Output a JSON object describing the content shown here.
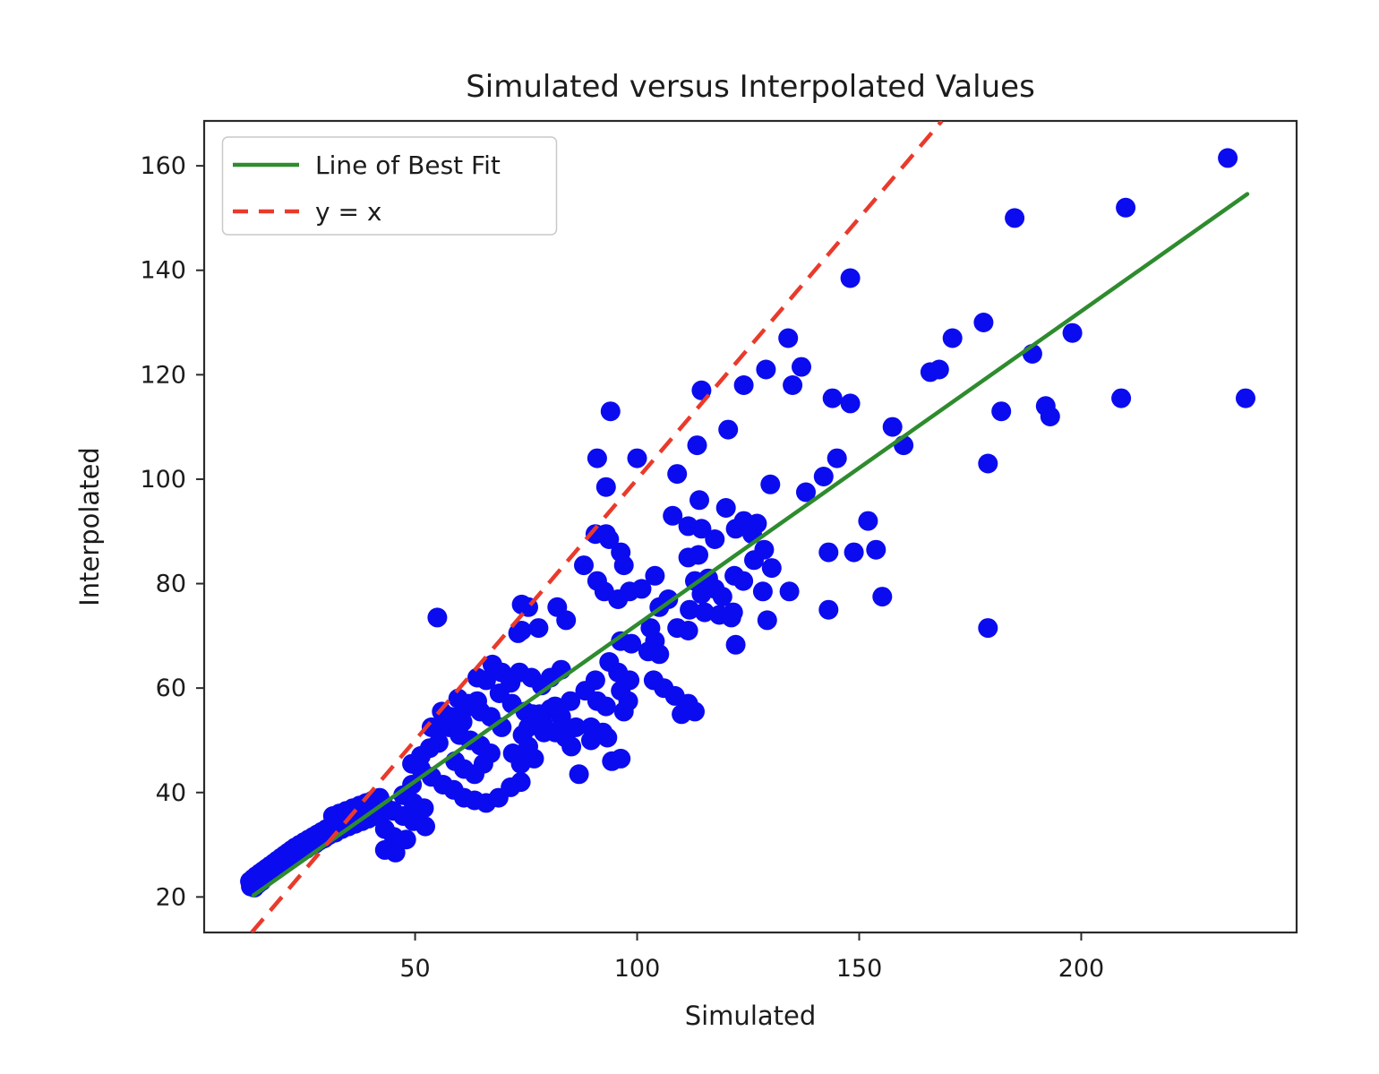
{
  "figure": {
    "title": "Simulated versus Interpolated Values",
    "xlabel": "Simulated",
    "ylabel": "Interpolated"
  },
  "chart_data": {
    "type": "scatter",
    "title": "Simulated versus Interpolated Values",
    "xlabel": "Simulated",
    "ylabel": "Interpolated",
    "xlim": [
      2.5,
      248.5
    ],
    "ylim": [
      13.2,
      168.6
    ],
    "x_ticks": [
      50,
      100,
      150,
      200
    ],
    "y_ticks": [
      20,
      40,
      60,
      80,
      100,
      120,
      140,
      160
    ],
    "grid": false,
    "colors": {
      "marker": "#0b0bf0",
      "best_fit": "#2e8b2e",
      "identity": "#e93a2b",
      "spine": "#2a2a2a",
      "legend_border": "#c9c9c9"
    },
    "legend": {
      "position": "upper left",
      "entries": [
        {
          "label": "Line of Best Fit",
          "color": "#2e8b2e",
          "style": "solid"
        },
        {
          "label": "y = x",
          "color": "#e93a2b",
          "style": "dashed"
        }
      ]
    },
    "best_fit_line": {
      "x_start": 13.6,
      "y_start": 20.3,
      "x_end": 237.4,
      "y_end": 154.6
    },
    "identity_line": {
      "slope": 1,
      "intercept": 0
    },
    "points": [
      [
        12.8,
        23
      ],
      [
        13,
        22
      ],
      [
        13.5,
        23.5
      ],
      [
        13.8,
        21.8
      ],
      [
        14.2,
        24
      ],
      [
        14.6,
        22.5
      ],
      [
        15,
        24.5
      ],
      [
        15.4,
        23
      ],
      [
        15.8,
        25
      ],
      [
        16.2,
        23.8
      ],
      [
        16.6,
        25.5
      ],
      [
        17,
        24.3
      ],
      [
        17.4,
        26
      ],
      [
        17.8,
        24.8
      ],
      [
        18.2,
        26.5
      ],
      [
        18.6,
        25.2
      ],
      [
        19,
        27
      ],
      [
        19.4,
        25.8
      ],
      [
        19.8,
        27.5
      ],
      [
        20.2,
        26.3
      ],
      [
        20.6,
        28
      ],
      [
        21,
        26.8
      ],
      [
        21.4,
        28.5
      ],
      [
        21.8,
        27.2
      ],
      [
        22.2,
        29
      ],
      [
        22.6,
        27.8
      ],
      [
        23,
        29.5
      ],
      [
        23.5,
        28.2
      ],
      [
        24,
        30
      ],
      [
        24.5,
        28.8
      ],
      [
        25,
        30.5
      ],
      [
        25.5,
        29.2
      ],
      [
        26,
        31
      ],
      [
        26.5,
        29.8
      ],
      [
        27,
        31.5
      ],
      [
        27.5,
        30.2
      ],
      [
        28,
        32
      ],
      [
        28.5,
        30.8
      ],
      [
        29,
        32.5
      ],
      [
        29.5,
        31.2
      ],
      [
        30,
        33
      ],
      [
        30.5,
        31.8
      ],
      [
        31,
        33.5
      ],
      [
        31.5,
        35.5
      ],
      [
        32,
        32.3
      ],
      [
        32.5,
        34
      ],
      [
        33,
        36
      ],
      [
        33.5,
        33
      ],
      [
        34,
        34.5
      ],
      [
        34.5,
        36.5
      ],
      [
        35,
        33.5
      ],
      [
        35.5,
        35
      ],
      [
        36,
        37
      ],
      [
        36.5,
        34
      ],
      [
        37,
        35.5
      ],
      [
        37.5,
        37.5
      ],
      [
        38,
        34.5
      ],
      [
        38.5,
        36
      ],
      [
        39,
        38
      ],
      [
        39.5,
        35
      ],
      [
        40,
        36.5
      ],
      [
        40.5,
        38.5
      ],
      [
        41,
        35.5
      ],
      [
        41.5,
        37
      ],
      [
        42,
        39
      ],
      [
        42.5,
        36
      ],
      [
        43,
        37.5
      ],
      [
        43.2,
        33
      ],
      [
        45.2,
        31.5
      ],
      [
        48,
        31
      ],
      [
        43.2,
        29
      ],
      [
        45.6,
        28.5
      ],
      [
        45,
        36.5
      ],
      [
        47.3,
        35.5
      ],
      [
        49.6,
        34.5
      ],
      [
        52.3,
        33.5
      ],
      [
        49.3,
        41.5
      ],
      [
        47.3,
        39.5
      ],
      [
        49.6,
        38
      ],
      [
        52,
        37
      ],
      [
        55.3,
        49.5
      ],
      [
        53.3,
        48.5
      ],
      [
        51.3,
        47
      ],
      [
        49.3,
        45.5
      ],
      [
        51.3,
        44.5
      ],
      [
        53.7,
        43
      ],
      [
        56.3,
        41.5
      ],
      [
        58.7,
        40.5
      ],
      [
        61,
        39
      ],
      [
        63.4,
        38.5
      ],
      [
        66,
        38
      ],
      [
        68.8,
        39
      ],
      [
        71.5,
        41
      ],
      [
        73.8,
        42
      ],
      [
        59.7,
        54.5
      ],
      [
        57.7,
        52.5
      ],
      [
        60,
        51
      ],
      [
        62.4,
        50
      ],
      [
        64.7,
        49
      ],
      [
        67,
        47.5
      ],
      [
        65.4,
        45.5
      ],
      [
        63.4,
        43.5
      ],
      [
        61,
        44.5
      ],
      [
        59,
        46
      ],
      [
        62.4,
        56.5
      ],
      [
        64.7,
        55.5
      ],
      [
        67,
        54.5
      ],
      [
        69.5,
        52.5
      ],
      [
        72,
        47.5
      ],
      [
        73.8,
        45.5
      ],
      [
        76.8,
        46.5
      ],
      [
        74.2,
        51
      ],
      [
        75.5,
        48.8
      ],
      [
        76.5,
        55
      ],
      [
        78.9,
        53
      ],
      [
        81.6,
        51.5
      ],
      [
        83.9,
        50.5
      ],
      [
        80.5,
        56
      ],
      [
        82.9,
        54.5
      ],
      [
        85.2,
        48.8
      ],
      [
        86.9,
        43.5
      ],
      [
        93.3,
        50.5
      ],
      [
        94.3,
        46
      ],
      [
        96.3,
        46.5
      ],
      [
        97,
        55.5
      ],
      [
        55,
        73.5
      ],
      [
        55.3,
        52
      ],
      [
        56,
        55.5
      ],
      [
        53.7,
        52.5
      ],
      [
        58,
        54.5
      ],
      [
        60.7,
        53.5
      ],
      [
        59.7,
        58
      ],
      [
        62,
        57
      ],
      [
        64,
        57.5
      ],
      [
        64,
        62
      ],
      [
        66,
        61.5
      ],
      [
        67.4,
        64.5
      ],
      [
        69.5,
        63
      ],
      [
        73.2,
        70.5
      ],
      [
        74,
        71
      ],
      [
        74,
        76
      ],
      [
        69,
        59
      ],
      [
        71.8,
        57
      ],
      [
        74.8,
        55.5
      ],
      [
        78,
        55
      ],
      [
        81.5,
        56.5
      ],
      [
        85,
        57.5
      ],
      [
        71.5,
        61
      ],
      [
        73.5,
        63
      ],
      [
        76.2,
        62
      ],
      [
        78.5,
        60.5
      ],
      [
        80.5,
        62
      ],
      [
        82.9,
        63.5
      ],
      [
        75.5,
        52.5
      ],
      [
        79,
        51.5
      ],
      [
        82.9,
        52
      ],
      [
        86.2,
        52.5
      ],
      [
        89.6,
        52.5
      ],
      [
        92.3,
        51.5
      ],
      [
        89.6,
        50
      ],
      [
        88.3,
        59.5
      ],
      [
        90.6,
        61.5
      ],
      [
        91,
        57.5
      ],
      [
        93,
        56.5
      ],
      [
        96.3,
        59.5
      ],
      [
        98,
        57.5
      ],
      [
        98.3,
        61.5
      ],
      [
        95.7,
        63
      ],
      [
        93.7,
        65
      ],
      [
        96.3,
        69
      ],
      [
        98.7,
        68.5
      ],
      [
        102.5,
        67
      ],
      [
        104,
        69
      ],
      [
        103,
        71.5
      ],
      [
        105,
        66.5
      ],
      [
        103.7,
        61.5
      ],
      [
        106,
        60
      ],
      [
        108.5,
        58.5
      ],
      [
        110,
        55
      ],
      [
        111.5,
        57
      ],
      [
        113,
        55.5
      ],
      [
        105,
        75.5
      ],
      [
        107,
        77
      ],
      [
        109,
        71.5
      ],
      [
        111.5,
        71
      ],
      [
        111.8,
        75
      ],
      [
        115.2,
        74.5
      ],
      [
        118.5,
        74
      ],
      [
        121.2,
        73.5
      ],
      [
        113,
        80.5
      ],
      [
        116,
        81
      ],
      [
        114.5,
        78
      ],
      [
        117.5,
        79
      ],
      [
        111.5,
        85
      ],
      [
        113.8,
        85.5
      ],
      [
        117.5,
        88.5
      ],
      [
        90.6,
        89.5
      ],
      [
        93.7,
        88.5
      ],
      [
        96.3,
        86
      ],
      [
        97,
        83.5
      ],
      [
        91,
        80.5
      ],
      [
        92.6,
        78.5
      ],
      [
        95.7,
        77
      ],
      [
        98.3,
        78.5
      ],
      [
        101,
        79
      ],
      [
        104,
        81.5
      ],
      [
        88,
        83.5
      ],
      [
        75.5,
        75.5
      ],
      [
        82,
        75.5
      ],
      [
        84,
        73
      ],
      [
        77.8,
        71.5
      ],
      [
        122.2,
        68.3
      ],
      [
        119.2,
        77.5
      ],
      [
        121.6,
        74.5
      ],
      [
        129.3,
        73
      ],
      [
        128.3,
        78.5
      ],
      [
        134.3,
        78.5
      ],
      [
        121.9,
        81.5
      ],
      [
        123.9,
        80.5
      ],
      [
        126.3,
        84.5
      ],
      [
        128.6,
        86.5
      ],
      [
        130.3,
        83
      ],
      [
        125.9,
        89.5
      ],
      [
        122.2,
        90.5
      ],
      [
        143.1,
        86
      ],
      [
        148.8,
        86
      ],
      [
        153.8,
        86.5
      ],
      [
        143.1,
        75
      ],
      [
        155.2,
        77.5
      ],
      [
        179,
        71.5
      ],
      [
        179,
        103
      ],
      [
        120,
        94.5
      ],
      [
        124,
        92
      ],
      [
        127,
        91.5
      ],
      [
        111.5,
        91
      ],
      [
        114.5,
        90.5
      ],
      [
        108,
        93
      ],
      [
        114,
        96
      ],
      [
        93,
        89.5
      ],
      [
        93,
        98.5
      ],
      [
        91,
        104
      ],
      [
        100,
        104
      ],
      [
        109,
        101
      ],
      [
        113.5,
        106.5
      ],
      [
        120.5,
        109.5
      ],
      [
        114.5,
        117
      ],
      [
        124,
        118
      ],
      [
        129,
        121
      ],
      [
        134,
        127
      ],
      [
        135,
        118
      ],
      [
        137,
        121.5
      ],
      [
        94,
        113
      ],
      [
        130,
        99
      ],
      [
        138,
        97.5
      ],
      [
        142,
        100.5
      ],
      [
        145,
        104
      ],
      [
        144,
        115.5
      ],
      [
        148,
        114.5
      ],
      [
        152,
        92
      ],
      [
        157.5,
        110
      ],
      [
        160,
        106.5
      ],
      [
        166,
        120.5
      ],
      [
        148,
        138.5
      ],
      [
        233,
        161.5
      ],
      [
        210,
        152
      ],
      [
        185,
        150
      ],
      [
        178,
        130
      ],
      [
        171,
        127
      ],
      [
        168,
        121
      ],
      [
        189,
        124
      ],
      [
        198,
        128
      ],
      [
        182,
        113
      ],
      [
        192,
        114
      ],
      [
        193,
        112
      ],
      [
        209,
        115.5
      ],
      [
        237,
        115.5
      ]
    ]
  }
}
